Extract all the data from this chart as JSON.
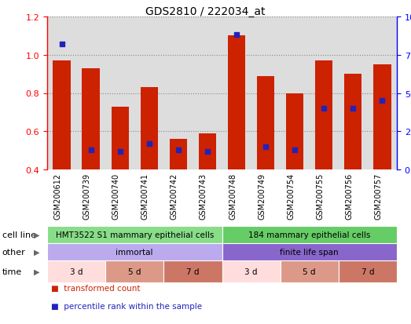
{
  "title": "GDS2810 / 222034_at",
  "samples": [
    "GSM200612",
    "GSM200739",
    "GSM200740",
    "GSM200741",
    "GSM200742",
    "GSM200743",
    "GSM200748",
    "GSM200749",
    "GSM200754",
    "GSM200755",
    "GSM200756",
    "GSM200757"
  ],
  "transformed_count": [
    0.97,
    0.93,
    0.73,
    0.83,
    0.56,
    0.59,
    1.1,
    0.89,
    0.8,
    0.97,
    0.9,
    0.95
  ],
  "percentile_rank": [
    82,
    13,
    12,
    17,
    13,
    12,
    88,
    15,
    13,
    40,
    40,
    45
  ],
  "ylim_left": [
    0.4,
    1.2
  ],
  "ylim_right": [
    0,
    100
  ],
  "yticks_left": [
    0.4,
    0.6,
    0.8,
    1.0,
    1.2
  ],
  "yticks_right": [
    0,
    25,
    50,
    75,
    100
  ],
  "bar_color": "#cc2200",
  "dot_color": "#2222bb",
  "bar_width": 0.6,
  "cell_line_row": {
    "label": "cell line",
    "groups": [
      {
        "text": "HMT3522 S1 mammary epithelial cells",
        "span": [
          0,
          6
        ],
        "color": "#88dd88"
      },
      {
        "text": "184 mammary epithelial cells",
        "span": [
          6,
          12
        ],
        "color": "#66cc66"
      }
    ]
  },
  "other_row": {
    "label": "other",
    "groups": [
      {
        "text": "immortal",
        "span": [
          0,
          6
        ],
        "color": "#bbaaee"
      },
      {
        "text": "finite life span",
        "span": [
          6,
          12
        ],
        "color": "#8866cc"
      }
    ]
  },
  "time_row": {
    "label": "time",
    "groups": [
      {
        "text": "3 d",
        "span": [
          0,
          2
        ],
        "color": "#ffdddd"
      },
      {
        "text": "5 d",
        "span": [
          2,
          4
        ],
        "color": "#dd9988"
      },
      {
        "text": "7 d",
        "span": [
          4,
          6
        ],
        "color": "#cc7766"
      },
      {
        "text": "3 d",
        "span": [
          6,
          8
        ],
        "color": "#ffdddd"
      },
      {
        "text": "5 d",
        "span": [
          8,
          10
        ],
        "color": "#dd9988"
      },
      {
        "text": "7 d",
        "span": [
          10,
          12
        ],
        "color": "#cc7766"
      }
    ]
  },
  "legend": [
    {
      "label": "transformed count",
      "color": "#cc2200"
    },
    {
      "label": "percentile rank within the sample",
      "color": "#2222bb"
    }
  ],
  "bg_color": "#ffffff",
  "grid_color": "#888888",
  "axis_bg": "#dddddd",
  "xticklabel_bg": "#cccccc"
}
